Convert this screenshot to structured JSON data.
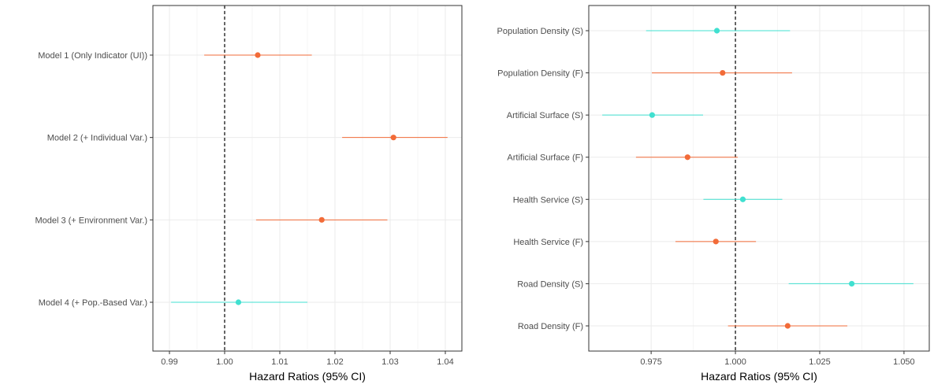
{
  "colors": {
    "upper": "#f26b38",
    "lower": "#40e0d0",
    "grid_major": "#ebebeb",
    "grid_minor": "#f5f5f5",
    "panel_border": "#333333",
    "ref_line": "#000000"
  },
  "chart_data": [
    {
      "type": "forest",
      "xlabel": "Hazard Ratios (95% CI)",
      "ylabel": "",
      "xlim": [
        0.987,
        1.043
      ],
      "x_ticks": [
        0.99,
        1.0,
        1.01,
        1.02,
        1.03,
        1.04
      ],
      "x_tick_labels": [
        "0.99",
        "1.00",
        "1.01",
        "1.02",
        "1.03",
        "1.04"
      ],
      "reference_line": 1.0,
      "grid": true,
      "rows": [
        {
          "label": "Model 1 (Only Indicator (UI))",
          "estimate": 1.006,
          "lower": 0.9963,
          "upper": 1.0158,
          "color_key": "upper"
        },
        {
          "label": "Model 2 (+ Individual Var.)",
          "estimate": 1.0306,
          "lower": 1.0213,
          "upper": 1.0404,
          "color_key": "upper"
        },
        {
          "label": "Model 3 (+ Environment Var.)",
          "estimate": 1.0176,
          "lower": 1.0057,
          "upper": 1.0295,
          "color_key": "upper"
        },
        {
          "label": "Model 4 (+ Pop.-Based Var.)",
          "estimate": 1.0025,
          "lower": 0.9903,
          "upper": 1.015,
          "color_key": "lower"
        }
      ]
    },
    {
      "type": "forest",
      "xlabel": "Hazard Ratios (95% CI)",
      "ylabel": "",
      "xlim": [
        0.9565,
        1.0575
      ],
      "x_ticks": [
        0.975,
        1.0,
        1.025,
        1.05
      ],
      "x_tick_labels": [
        "0.975",
        "1.000",
        "1.025",
        "1.050"
      ],
      "reference_line": 1.0,
      "grid": true,
      "rows": [
        {
          "label": "Population Density (S)",
          "estimate": 0.9945,
          "lower": 0.9735,
          "upper": 1.0162,
          "color_key": "lower"
        },
        {
          "label": "Population Density (F)",
          "estimate": 0.9962,
          "lower": 0.9752,
          "upper": 1.0168,
          "color_key": "upper"
        },
        {
          "label": "Artificial Surface (S)",
          "estimate": 0.9753,
          "lower": 0.9605,
          "upper": 0.9904,
          "color_key": "lower"
        },
        {
          "label": "Artificial Surface (F)",
          "estimate": 0.9858,
          "lower": 0.9705,
          "upper": 1.0007,
          "color_key": "upper"
        },
        {
          "label": "Health Service (S)",
          "estimate": 1.0022,
          "lower": 0.9905,
          "upper": 1.0139,
          "color_key": "lower"
        },
        {
          "label": "Health Service (F)",
          "estimate": 0.9942,
          "lower": 0.9822,
          "upper": 1.0061,
          "color_key": "upper"
        },
        {
          "label": "Road Density (S)",
          "estimate": 1.0345,
          "lower": 1.0158,
          "upper": 1.0528,
          "color_key": "lower"
        },
        {
          "label": "Road Density (F)",
          "estimate": 1.0155,
          "lower": 0.9978,
          "upper": 1.0332,
          "color_key": "upper"
        }
      ]
    }
  ]
}
